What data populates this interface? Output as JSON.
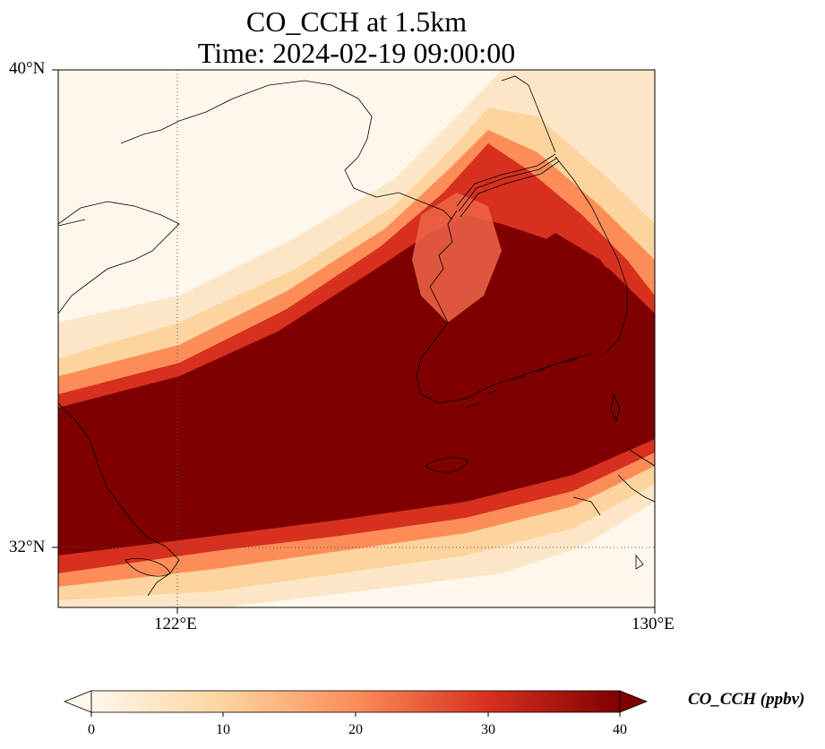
{
  "title": {
    "line1": "CO_CCH at 1.5km",
    "line2": "Time: 2024-02-19 09:00:00"
  },
  "axes": {
    "lat_ticks": [
      "40°N",
      "32°N"
    ],
    "lon_ticks": [
      "122°E",
      "130°E"
    ],
    "extent": {
      "lon_min": 120,
      "lon_max": 130,
      "lat_min": 31,
      "lat_max": 40
    },
    "gridlines": {
      "lons": [
        122
      ],
      "lats": [
        32
      ],
      "style": "dotted"
    }
  },
  "colorbar": {
    "label": "CO_CCH (ppbv)",
    "ticks": [
      "0",
      "10",
      "20",
      "30",
      "40"
    ],
    "min": 0,
    "max": 40,
    "colormap": "OrRd",
    "extend": "both"
  },
  "plume": {
    "description_note": "",
    "axis_points": [
      [
        120.0,
        32.6
      ],
      [
        122.0,
        33.4
      ],
      [
        124.0,
        34.3
      ],
      [
        125.5,
        35.1
      ],
      [
        126.5,
        35.8
      ],
      [
        127.5,
        36.3
      ],
      [
        128.5,
        36.8
      ],
      [
        130.0,
        37.4
      ]
    ],
    "core_color": "#7f0000"
  },
  "colors": {
    "background": "#fff7ec",
    "coastline": "#000000",
    "frame": "#000000"
  }
}
